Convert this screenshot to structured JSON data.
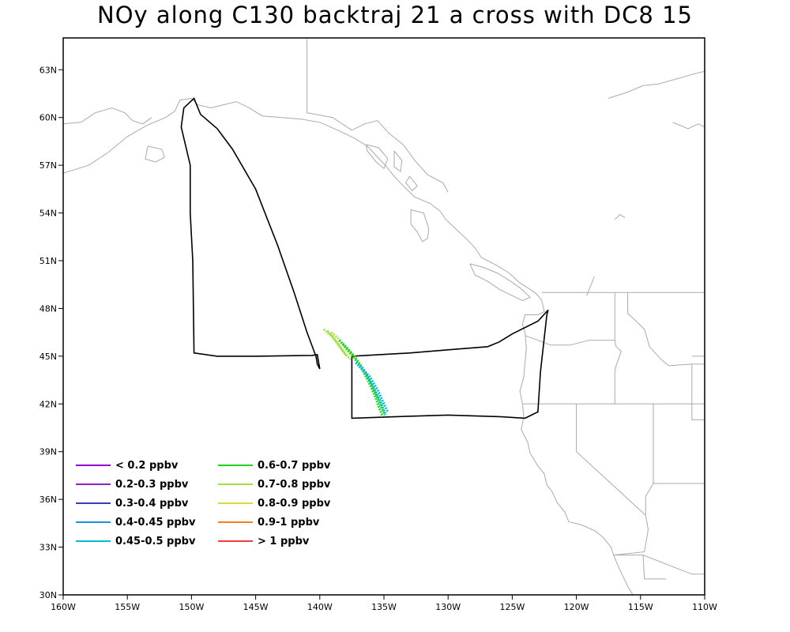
{
  "title": "NOy along C130 backtraj 21 a cross with DC8 15",
  "map": {
    "lon_range": [
      -160,
      -110
    ],
    "lat_range": [
      30,
      65
    ],
    "x_ticks": [
      {
        "value": -160,
        "label": "160W"
      },
      {
        "value": -155,
        "label": "155W"
      },
      {
        "value": -150,
        "label": "150W"
      },
      {
        "value": -145,
        "label": "145W"
      },
      {
        "value": -140,
        "label": "140W"
      },
      {
        "value": -135,
        "label": "135W"
      },
      {
        "value": -130,
        "label": "130W"
      },
      {
        "value": -125,
        "label": "125W"
      },
      {
        "value": -120,
        "label": "120W"
      },
      {
        "value": -115,
        "label": "115W"
      },
      {
        "value": -110,
        "label": "110W"
      }
    ],
    "y_ticks": [
      {
        "value": 30,
        "label": "30N"
      },
      {
        "value": 33,
        "label": "33N"
      },
      {
        "value": 36,
        "label": "36N"
      },
      {
        "value": 39,
        "label": "39N"
      },
      {
        "value": 42,
        "label": "42N"
      },
      {
        "value": 45,
        "label": "45N"
      },
      {
        "value": 48,
        "label": "48N"
      },
      {
        "value": 51,
        "label": "51N"
      },
      {
        "value": 54,
        "label": "54N"
      },
      {
        "value": 57,
        "label": "57N"
      },
      {
        "value": 60,
        "label": "60N"
      },
      {
        "value": 63,
        "label": "63N"
      }
    ],
    "colors": {
      "coast": "#aaaaaa",
      "flight": "#000000",
      "frame": "#000000"
    }
  },
  "legend": [
    {
      "label": "< 0.2 ppbv",
      "color": "#9400d3"
    },
    {
      "label": "0.2-0.3 ppbv",
      "color": "#8b1fbf"
    },
    {
      "label": "0.3-0.4 ppbv",
      "color": "#2f3fbf"
    },
    {
      "label": "0.4-0.45 ppbv",
      "color": "#1f8fe0"
    },
    {
      "label": "0.45-0.5 ppbv",
      "color": "#00bcd0"
    },
    {
      "label": "0.6-0.7 ppbv",
      "color": "#1ed21e"
    },
    {
      "label": "0.7-0.8 ppbv",
      "color": "#a0e040"
    },
    {
      "label": "0.8-0.9 ppbv",
      "color": "#e0d840"
    },
    {
      "label": "0.9-1 ppbv",
      "color": "#f08020"
    },
    {
      "label": "> 1 ppbv",
      "color": "#f03c3c"
    }
  ],
  "flight_track": [
    [
      -140.3,
      45.0
    ],
    [
      -141.0,
      46.5
    ],
    [
      -142.0,
      49.0
    ],
    [
      -143.3,
      52.0
    ],
    [
      -145.0,
      55.5
    ],
    [
      -146.8,
      58.0
    ],
    [
      -148.0,
      59.3
    ],
    [
      -149.3,
      60.2
    ],
    [
      -149.8,
      61.2
    ],
    [
      -150.6,
      60.6
    ],
    [
      -150.8,
      59.4
    ],
    [
      -150.1,
      57.0
    ],
    [
      -150.1,
      54.0
    ],
    [
      -149.9,
      51.0
    ],
    [
      -149.8,
      45.2
    ],
    [
      -148.0,
      45.0
    ],
    [
      -145.0,
      45.0
    ],
    [
      -140.6,
      45.05
    ],
    [
      -140.2,
      45.1
    ],
    [
      -140.0,
      44.2
    ],
    [
      -140.2,
      44.5
    ],
    [
      -140.25,
      44.8
    ],
    [
      -140.3,
      45.0
    ]
  ],
  "flight_box": [
    [
      -137.5,
      45.0
    ],
    [
      -133.0,
      45.2
    ],
    [
      -130.0,
      45.4
    ],
    [
      -126.9,
      45.6
    ],
    [
      -126.0,
      45.9
    ],
    [
      -125.0,
      46.4
    ],
    [
      -123.0,
      47.2
    ],
    [
      -122.2,
      47.9
    ],
    [
      -122.3,
      47.6
    ],
    [
      -122.8,
      44.0
    ],
    [
      -123.0,
      41.5
    ],
    [
      -124.0,
      41.1
    ],
    [
      -126.0,
      41.2
    ],
    [
      -130.0,
      41.3
    ],
    [
      -134.0,
      41.2
    ],
    [
      -137.5,
      41.1
    ],
    [
      -137.5,
      45.0
    ]
  ],
  "trajectories": [
    {
      "color": "#a0e040",
      "points": [
        [
          -139.7,
          46.7
        ],
        [
          -139.0,
          46.2
        ],
        [
          -138.4,
          45.6
        ],
        [
          -137.9,
          45.0
        ]
      ]
    },
    {
      "color": "#a0e040",
      "points": [
        [
          -139.4,
          46.6
        ],
        [
          -138.8,
          46.0
        ],
        [
          -138.2,
          45.3
        ],
        [
          -137.6,
          44.8
        ]
      ]
    },
    {
      "color": "#a0e040",
      "points": [
        [
          -139.1,
          46.5
        ],
        [
          -138.4,
          46.0
        ],
        [
          -137.9,
          45.4
        ],
        [
          -137.4,
          44.9
        ]
      ]
    },
    {
      "color": "#1ed21e",
      "points": [
        [
          -138.5,
          46.0
        ],
        [
          -137.6,
          45.2
        ],
        [
          -136.8,
          44.3
        ],
        [
          -136.2,
          43.4
        ],
        [
          -135.7,
          42.5
        ],
        [
          -135.3,
          41.6
        ],
        [
          -135.1,
          41.2
        ]
      ]
    },
    {
      "color": "#1ed21e",
      "points": [
        [
          -138.2,
          45.8
        ],
        [
          -137.3,
          45.0
        ],
        [
          -136.6,
          44.2
        ],
        [
          -136.0,
          43.3
        ],
        [
          -135.5,
          42.4
        ],
        [
          -135.1,
          41.6
        ],
        [
          -134.9,
          41.3
        ]
      ]
    },
    {
      "color": "#00bcd0",
      "points": [
        [
          -137.2,
          44.6
        ],
        [
          -136.4,
          43.9
        ],
        [
          -135.8,
          43.0
        ],
        [
          -135.3,
          42.2
        ],
        [
          -134.9,
          41.4
        ]
      ]
    },
    {
      "color": "#00bcd0",
      "points": [
        [
          -136.9,
          44.4
        ],
        [
          -136.1,
          43.7
        ],
        [
          -135.5,
          42.9
        ],
        [
          -135.0,
          42.0
        ],
        [
          -134.7,
          41.5
        ]
      ]
    }
  ],
  "coastline": [
    [
      [
        -160,
        56.5
      ],
      [
        -158.0,
        57.0
      ],
      [
        -156.5,
        57.8
      ],
      [
        -155.0,
        58.8
      ],
      [
        -153.5,
        59.5
      ],
      [
        -152.0,
        60.0
      ],
      [
        -151.3,
        60.4
      ],
      [
        -150.9,
        61.1
      ],
      [
        -150.0,
        61.2
      ],
      [
        -149.5,
        60.8
      ],
      [
        -148.5,
        60.6
      ],
      [
        -147.5,
        60.8
      ],
      [
        -146.5,
        61.0
      ],
      [
        -145.5,
        60.6
      ],
      [
        -144.5,
        60.1
      ],
      [
        -143.0,
        60.0
      ],
      [
        -141.5,
        59.9
      ],
      [
        -140.0,
        59.7
      ],
      [
        -138.6,
        59.2
      ],
      [
        -137.3,
        58.7
      ],
      [
        -136.3,
        58.2
      ],
      [
        -135.6,
        57.6
      ],
      [
        -134.9,
        57.0
      ],
      [
        -134.2,
        56.3
      ],
      [
        -133.5,
        55.7
      ],
      [
        -132.6,
        55.0
      ],
      [
        -131.4,
        54.6
      ],
      [
        -130.6,
        54.1
      ],
      [
        -130.2,
        53.6
      ],
      [
        -129.4,
        53.0
      ],
      [
        -128.6,
        52.4
      ],
      [
        -127.9,
        51.8
      ],
      [
        -127.4,
        51.2
      ],
      [
        -126.2,
        50.7
      ],
      [
        -125.2,
        50.2
      ],
      [
        -124.4,
        49.6
      ],
      [
        -123.6,
        49.2
      ],
      [
        -123.1,
        48.9
      ],
      [
        -122.7,
        48.5
      ],
      [
        -122.5,
        47.8
      ],
      [
        -123.0,
        47.6
      ],
      [
        -124.0,
        47.6
      ],
      [
        -124.2,
        47.0
      ],
      [
        -124.0,
        46.5
      ],
      [
        -123.9,
        45.5
      ],
      [
        -124.0,
        44.6
      ],
      [
        -124.1,
        43.7
      ],
      [
        -124.4,
        42.8
      ],
      [
        -124.2,
        42.0
      ],
      [
        -124.1,
        41.2
      ],
      [
        -124.3,
        40.4
      ],
      [
        -123.8,
        39.6
      ],
      [
        -123.6,
        38.9
      ],
      [
        -123.0,
        38.1
      ],
      [
        -122.5,
        37.6
      ],
      [
        -122.3,
        36.9
      ],
      [
        -121.9,
        36.5
      ],
      [
        -121.5,
        35.8
      ],
      [
        -120.9,
        35.2
      ],
      [
        -120.6,
        34.6
      ],
      [
        -119.6,
        34.4
      ],
      [
        -118.5,
        34.0
      ],
      [
        -117.9,
        33.6
      ],
      [
        -117.3,
        33.0
      ],
      [
        -117.1,
        32.5
      ],
      [
        -116.8,
        31.9
      ],
      [
        -116.4,
        31.2
      ],
      [
        -115.9,
        30.4
      ],
      [
        -115.6,
        30.0
      ]
    ],
    [
      [
        -160,
        59.6
      ],
      [
        -158.6,
        59.7
      ],
      [
        -157.5,
        60.3
      ],
      [
        -156.2,
        60.6
      ],
      [
        -155.2,
        60.3
      ],
      [
        -154.6,
        59.8
      ],
      [
        -153.8,
        59.6
      ],
      [
        -153.1,
        60.0
      ]
    ],
    [
      [
        -153.4,
        58.2
      ],
      [
        -152.3,
        58.0
      ],
      [
        -152.1,
        57.5
      ],
      [
        -152.8,
        57.2
      ],
      [
        -153.6,
        57.4
      ],
      [
        -153.4,
        58.2
      ]
    ],
    [
      [
        -136.4,
        58.3
      ],
      [
        -135.4,
        58.1
      ],
      [
        -134.7,
        57.4
      ],
      [
        -135.0,
        56.8
      ],
      [
        -135.6,
        57.2
      ],
      [
        -136.3,
        57.9
      ],
      [
        -136.4,
        58.3
      ]
    ],
    [
      [
        -134.2,
        57.9
      ],
      [
        -133.6,
        57.3
      ],
      [
        -133.7,
        56.6
      ],
      [
        -134.2,
        56.9
      ],
      [
        -134.2,
        57.9
      ]
    ],
    [
      [
        -133.0,
        56.3
      ],
      [
        -132.4,
        55.7
      ],
      [
        -132.8,
        55.4
      ],
      [
        -133.3,
        55.9
      ],
      [
        -133.0,
        56.3
      ]
    ],
    [
      [
        -132.9,
        54.2
      ],
      [
        -131.9,
        54.0
      ],
      [
        -131.5,
        53.0
      ],
      [
        -131.6,
        52.4
      ],
      [
        -132.0,
        52.2
      ],
      [
        -132.4,
        52.8
      ],
      [
        -132.9,
        53.3
      ],
      [
        -132.9,
        54.2
      ]
    ],
    [
      [
        -128.3,
        50.8
      ],
      [
        -127.3,
        50.6
      ],
      [
        -126.1,
        50.2
      ],
      [
        -125.3,
        49.8
      ],
      [
        -124.4,
        49.3
      ],
      [
        -123.6,
        48.7
      ],
      [
        -124.2,
        48.5
      ],
      [
        -125.0,
        48.8
      ],
      [
        -126.0,
        49.2
      ],
      [
        -126.9,
        49.7
      ],
      [
        -127.9,
        50.1
      ],
      [
        -128.3,
        50.8
      ]
    ],
    [
      [
        -117.5,
        61.2
      ],
      [
        -116.0,
        61.6
      ],
      [
        -114.8,
        62.0
      ],
      [
        -113.6,
        62.1
      ],
      [
        -112.3,
        62.4
      ],
      [
        -111.0,
        62.7
      ],
      [
        -110,
        62.9
      ]
    ],
    [
      [
        -112.5,
        59.7
      ],
      [
        -111.3,
        59.3
      ],
      [
        -110.5,
        59.6
      ],
      [
        -110,
        59.4
      ]
    ],
    [
      [
        -119.2,
        48.8
      ],
      [
        -118.9,
        49.4
      ],
      [
        -118.6,
        50.0
      ]
    ],
    [
      [
        -117.0,
        53.6
      ],
      [
        -116.6,
        53.9
      ],
      [
        -116.2,
        53.7
      ]
    ]
  ],
  "borders": [
    [
      [
        -141.0,
        65.0
      ],
      [
        -141.0,
        60.3
      ],
      [
        -139.0,
        60.0
      ],
      [
        -137.5,
        59.2
      ],
      [
        -136.5,
        59.6
      ],
      [
        -135.5,
        59.8
      ],
      [
        -134.6,
        59.0
      ],
      [
        -133.5,
        58.3
      ],
      [
        -132.6,
        57.3
      ],
      [
        -131.6,
        56.4
      ],
      [
        -130.4,
        55.9
      ],
      [
        -130.0,
        55.3
      ]
    ],
    [
      [
        -122.7,
        49.0
      ],
      [
        -120.0,
        49.0
      ],
      [
        -115.0,
        49.0
      ],
      [
        -110,
        49.0
      ]
    ],
    [
      [
        -124.0,
        46.3
      ],
      [
        -122.0,
        45.7
      ],
      [
        -120.5,
        45.7
      ],
      [
        -119.0,
        46.0
      ],
      [
        -117.0,
        46.0
      ],
      [
        -116.9,
        45.6
      ],
      [
        -116.5,
        45.3
      ],
      [
        -116.9,
        44.4
      ],
      [
        -117.0,
        44.0
      ],
      [
        -117.0,
        42.0
      ]
    ],
    [
      [
        -124.2,
        42.0
      ],
      [
        -120.0,
        42.0
      ],
      [
        -117.0,
        42.0
      ],
      [
        -111.0,
        42.0
      ],
      [
        -110,
        42.0
      ]
    ],
    [
      [
        -117.0,
        49.0
      ],
      [
        -117.0,
        46.0
      ]
    ],
    [
      [
        -116.0,
        49.0
      ],
      [
        -116.0,
        47.7
      ],
      [
        -114.7,
        46.7
      ],
      [
        -114.3,
        45.6
      ],
      [
        -113.4,
        44.8
      ],
      [
        -112.8,
        44.4
      ],
      [
        -111.0,
        44.5
      ],
      [
        -110,
        44.5
      ]
    ],
    [
      [
        -111.0,
        45.0
      ],
      [
        -110,
        45.0
      ]
    ],
    [
      [
        -111.0,
        44.5
      ],
      [
        -111.0,
        41.0
      ],
      [
        -110,
        41.0
      ]
    ],
    [
      [
        -120.0,
        42.0
      ],
      [
        -120.0,
        39.0
      ],
      [
        -114.6,
        35.0
      ]
    ],
    [
      [
        -114.6,
        35.0
      ],
      [
        -114.4,
        34.1
      ],
      [
        -114.7,
        32.7
      ],
      [
        -117.1,
        32.5
      ]
    ],
    [
      [
        -117.1,
        32.5
      ],
      [
        -114.8,
        32.5
      ],
      [
        -111.0,
        31.3
      ],
      [
        -110,
        31.3
      ]
    ],
    [
      [
        -114.0,
        42.0
      ],
      [
        -114.0,
        37.0
      ],
      [
        -114.6,
        36.2
      ],
      [
        -114.6,
        35.0
      ]
    ],
    [
      [
        -114.0,
        37.0
      ],
      [
        -110,
        37.0
      ]
    ],
    [
      [
        -114.8,
        32.5
      ],
      [
        -114.7,
        31.0
      ],
      [
        -113.0,
        31.0
      ]
    ]
  ]
}
